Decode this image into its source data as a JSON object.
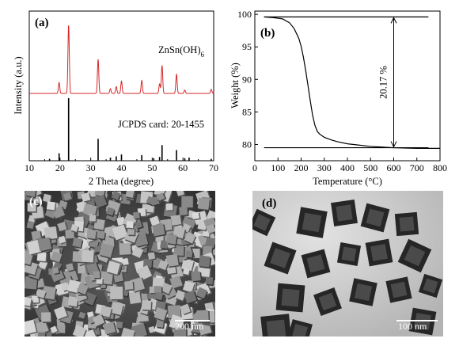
{
  "figure": {
    "panels": {
      "a": {
        "label": "(a)"
      },
      "b": {
        "label": "(b)"
      },
      "c": {
        "label": "(c)",
        "scale_bar": "200 nm"
      },
      "d": {
        "label": "(d)",
        "scale_bar": "100 nm"
      }
    },
    "colors": {
      "sample_trace": "#d62728",
      "reference_trace": "#000000",
      "curve": "#000000"
    }
  },
  "chart_data": [
    {
      "type": "line",
      "panel": "a",
      "xlabel": "2 Theta (degree)",
      "ylabel": "Intensity (a.u.)",
      "xlim": [
        10,
        70
      ],
      "x_ticks": [
        "10",
        "20",
        "30",
        "40",
        "50",
        "60",
        "70"
      ],
      "series": [
        {
          "name": "ZnSn(OH)6",
          "subscript": "6",
          "style": "line",
          "peaks": [
            {
              "x": 19.7,
              "h": 0.16
            },
            {
              "x": 22.8,
              "h": 1.0
            },
            {
              "x": 32.4,
              "h": 0.5
            },
            {
              "x": 36.4,
              "h": 0.07
            },
            {
              "x": 38.3,
              "h": 0.1
            },
            {
              "x": 40.0,
              "h": 0.18
            },
            {
              "x": 46.6,
              "h": 0.19
            },
            {
              "x": 52.4,
              "h": 0.14
            },
            {
              "x": 53.2,
              "h": 0.41
            },
            {
              "x": 57.9,
              "h": 0.28
            },
            {
              "x": 60.6,
              "h": 0.05
            },
            {
              "x": 69.2,
              "h": 0.06
            }
          ]
        },
        {
          "name": "JCPDS card: 20-1455",
          "style": "sticks",
          "peaks": [
            {
              "x": 16.6,
              "h": 0.03
            },
            {
              "x": 19.7,
              "h": 0.12
            },
            {
              "x": 22.8,
              "h": 1.0
            },
            {
              "x": 32.4,
              "h": 0.35
            },
            {
              "x": 36.4,
              "h": 0.05
            },
            {
              "x": 38.3,
              "h": 0.07
            },
            {
              "x": 40.0,
              "h": 0.1
            },
            {
              "x": 46.6,
              "h": 0.09
            },
            {
              "x": 50.5,
              "h": 0.04
            },
            {
              "x": 52.4,
              "h": 0.06
            },
            {
              "x": 53.2,
              "h": 0.25
            },
            {
              "x": 57.9,
              "h": 0.17
            },
            {
              "x": 60.6,
              "h": 0.04
            },
            {
              "x": 62.0,
              "h": 0.05
            },
            {
              "x": 69.2,
              "h": 0.03
            }
          ]
        }
      ]
    },
    {
      "type": "line",
      "panel": "b",
      "xlabel": "Temperature (°C)",
      "ylabel": "Weight (%)",
      "xlim": [
        0,
        800
      ],
      "ylim": [
        77.5,
        100.5
      ],
      "x_ticks": [
        "0",
        "100",
        "200",
        "300",
        "400",
        "500",
        "600",
        "700",
        "800"
      ],
      "y_ticks": [
        "80",
        "85",
        "90",
        "95",
        "100"
      ],
      "annotation": "20.17 %",
      "reference_lines": [
        99.6,
        79.5
      ],
      "series": [
        {
          "x": [
            40,
            80,
            120,
            150,
            170,
            190,
            200,
            210,
            220,
            230,
            240,
            250,
            260,
            270,
            280,
            300,
            330,
            360,
            400,
            450,
            500,
            550,
            600,
            650,
            700,
            750,
            800
          ],
          "y": [
            99.6,
            99.5,
            99.3,
            98.7,
            97.8,
            96.3,
            95.1,
            93.4,
            91.3,
            89.0,
            86.6,
            84.4,
            82.9,
            82.0,
            81.6,
            81.1,
            80.7,
            80.4,
            80.1,
            79.9,
            79.7,
            79.6,
            79.5,
            79.45,
            79.4,
            79.4,
            79.4
          ]
        }
      ]
    }
  ]
}
